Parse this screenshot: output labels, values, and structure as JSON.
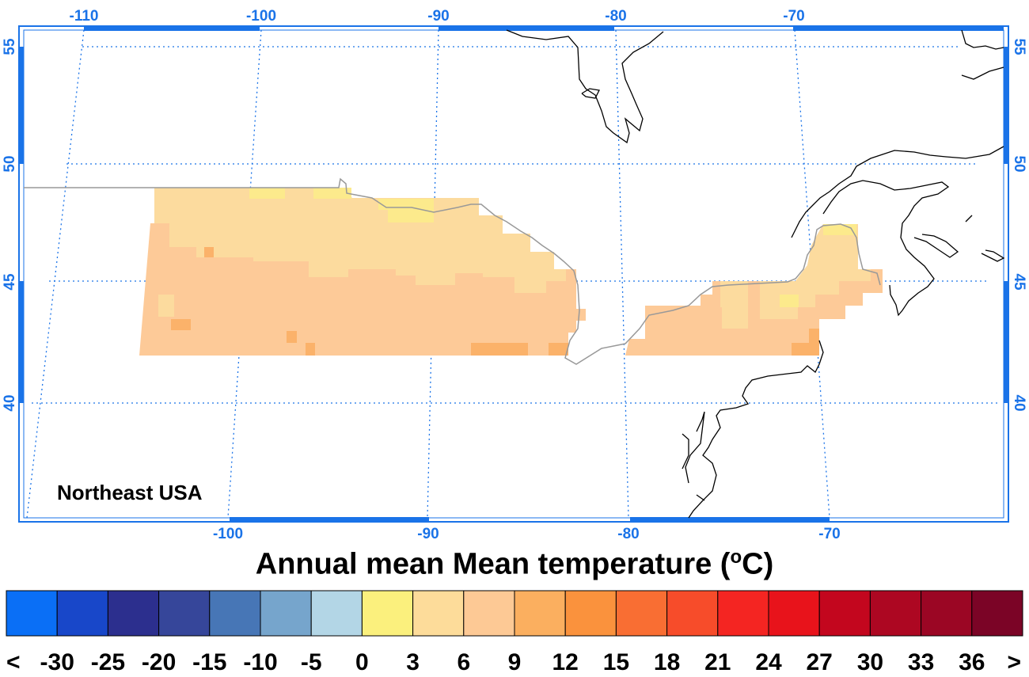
{
  "map": {
    "region_label": "Northeast USA",
    "top_lon_ticks": [
      "-110",
      "-100",
      "-90",
      "-80",
      "-70"
    ],
    "bottom_lon_ticks": [
      "-100",
      "-90",
      "-80",
      "-70"
    ],
    "left_lat_ticks": [
      "55",
      "50",
      "45",
      "40"
    ],
    "right_lat_ticks": [
      "55",
      "50",
      "45",
      "40"
    ],
    "colors": {
      "frame": "#1a73e8",
      "grid": "#1a73e8",
      "coast": "#000000",
      "border": "#999999"
    }
  },
  "title": {
    "prefix": "Annual mean Mean temperature (",
    "degree": "o",
    "suffix": "C)"
  },
  "colorbar": {
    "colors": [
      "#0a6ff6",
      "#1847c9",
      "#2c2f8e",
      "#36469a",
      "#4776b6",
      "#76a5cc",
      "#b3d6e6",
      "#fbf07d",
      "#fddc9a",
      "#fdc995",
      "#fbaf5f",
      "#fa923d",
      "#f96e33",
      "#f74c2a",
      "#f42522",
      "#e8131b",
      "#c3061e",
      "#ad0722",
      "#9b0624",
      "#7b0426"
    ],
    "labels": [
      "<",
      "-30",
      "-25",
      "-20",
      "-15",
      "-10",
      "-5",
      "0",
      "3",
      "6",
      "9",
      "12",
      "15",
      "18",
      "21",
      "24",
      "27",
      "30",
      "33",
      "36",
      ">"
    ]
  }
}
